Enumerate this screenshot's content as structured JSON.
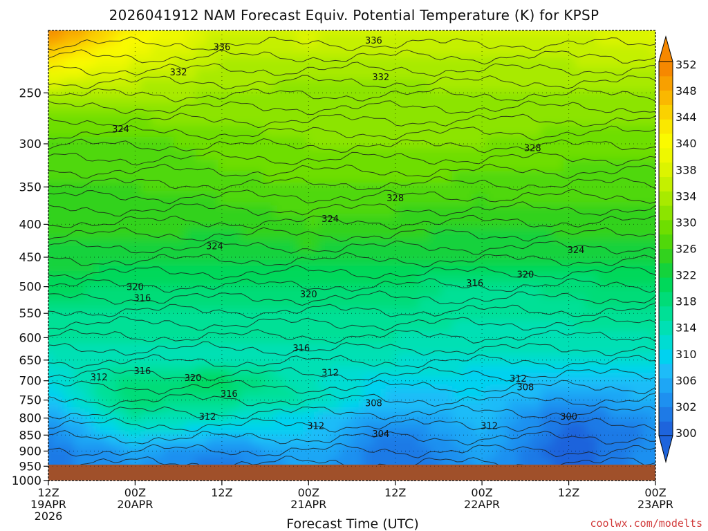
{
  "chart_data": {
    "type": "heatmap",
    "title": "2026041912 NAM Forecast Equiv. Potential Temperature (K) for KPSP",
    "xlabel": "Forecast Time (UTC)",
    "ylabel": "",
    "credit": "coolwx.com/modelts",
    "y_scale": "log",
    "ylim": [
      1000,
      200
    ],
    "yticks": [
      250,
      300,
      350,
      400,
      450,
      500,
      550,
      600,
      650,
      700,
      750,
      800,
      850,
      900,
      950,
      1000
    ],
    "surface_pressure": 945,
    "x_hours": [
      0,
      12,
      24,
      36,
      48,
      60,
      72,
      84
    ],
    "xlim": [
      0,
      84
    ],
    "x_ticks": [
      {
        "hour": 0,
        "lines": [
          "12Z",
          "19APR",
          "2026"
        ]
      },
      {
        "hour": 12,
        "lines": [
          "00Z",
          "20APR"
        ]
      },
      {
        "hour": 24,
        "lines": [
          "12Z"
        ]
      },
      {
        "hour": 36,
        "lines": [
          "00Z",
          "21APR"
        ]
      },
      {
        "hour": 48,
        "lines": [
          "12Z"
        ]
      },
      {
        "hour": 60,
        "lines": [
          "00Z",
          "22APR"
        ]
      },
      {
        "hour": 72,
        "lines": [
          "12Z"
        ]
      },
      {
        "hour": 84,
        "lines": [
          "00Z",
          "23APR"
        ]
      }
    ],
    "colorbar": {
      "levels": [
        300,
        302,
        304,
        306,
        308,
        310,
        312,
        314,
        316,
        318,
        320,
        322,
        324,
        326,
        328,
        330,
        332,
        334,
        336,
        338,
        340,
        342,
        344,
        346,
        348,
        350,
        352
      ],
      "labels": [
        300,
        302,
        306,
        310,
        314,
        318,
        322,
        326,
        330,
        334,
        338,
        340,
        344,
        348,
        352
      ],
      "colors": [
        "#1e64dc",
        "#1e7ae6",
        "#1e90f0",
        "#1ea6f5",
        "#1ebcf8",
        "#00d2f0",
        "#00dcd2",
        "#00e0b4",
        "#00e096",
        "#00dc78",
        "#00d85a",
        "#14d23c",
        "#32d21e",
        "#50d80a",
        "#6ede00",
        "#8ce400",
        "#a8ea00",
        "#c4f000",
        "#dcf400",
        "#eef800",
        "#fafa00",
        "#fae800",
        "#fad200",
        "#fab800",
        "#f8a000",
        "#f68800"
      ]
    },
    "series": [
      {
        "pressure": 200,
        "values": [
          352,
          342,
          336,
          337,
          336,
          336,
          336,
          338
        ]
      },
      {
        "pressure": 250,
        "values": [
          334,
          333,
          332,
          331,
          331,
          332,
          332,
          332
        ]
      },
      {
        "pressure": 300,
        "values": [
          326,
          327,
          329,
          330,
          330,
          330,
          329,
          329
        ]
      },
      {
        "pressure": 350,
        "values": [
          326,
          326,
          327,
          328,
          328,
          327,
          327,
          327
        ]
      },
      {
        "pressure": 400,
        "values": [
          325,
          325,
          324,
          326,
          325,
          324,
          325,
          325
        ]
      },
      {
        "pressure": 450,
        "values": [
          323,
          323,
          323,
          323,
          323,
          322,
          322,
          323
        ]
      },
      {
        "pressure": 500,
        "values": [
          321,
          320,
          320,
          320,
          320,
          317,
          319,
          320
        ]
      },
      {
        "pressure": 550,
        "values": [
          318,
          317,
          318,
          318,
          318,
          316,
          317,
          318
        ]
      },
      {
        "pressure": 600,
        "values": [
          316,
          316,
          316,
          316,
          316,
          315,
          315,
          316
        ]
      },
      {
        "pressure": 650,
        "values": [
          314,
          315,
          315,
          315,
          314,
          313,
          313,
          314
        ]
      },
      {
        "pressure": 700,
        "values": [
          312,
          319,
          321,
          314,
          311,
          311,
          309,
          310
        ]
      },
      {
        "pressure": 750,
        "values": [
          310,
          320,
          318,
          316,
          309,
          310,
          306,
          308
        ]
      },
      {
        "pressure": 800,
        "values": [
          306,
          316,
          314,
          310,
          306,
          309,
          302,
          306
        ]
      },
      {
        "pressure": 850,
        "values": [
          304,
          312,
          309,
          310,
          303,
          308,
          301,
          304
        ]
      },
      {
        "pressure": 900,
        "values": [
          303,
          307,
          304,
          308,
          302,
          307,
          300,
          306
        ]
      },
      {
        "pressure": 945,
        "values": [
          303,
          306,
          303,
          307,
          302,
          306,
          301,
          305
        ]
      }
    ],
    "contour_labels": [
      {
        "text": "336",
        "hour": 24,
        "pressure": 212
      },
      {
        "text": "336",
        "hour": 45,
        "pressure": 207
      },
      {
        "text": "332",
        "hour": 18,
        "pressure": 232
      },
      {
        "text": "332",
        "hour": 46,
        "pressure": 236
      },
      {
        "text": "324",
        "hour": 10,
        "pressure": 284
      },
      {
        "text": "328",
        "hour": 67,
        "pressure": 304
      },
      {
        "text": "328",
        "hour": 48,
        "pressure": 364
      },
      {
        "text": "324",
        "hour": 39,
        "pressure": 392
      },
      {
        "text": "324",
        "hour": 23,
        "pressure": 432
      },
      {
        "text": "324",
        "hour": 73,
        "pressure": 438
      },
      {
        "text": "320",
        "hour": 12,
        "pressure": 500
      },
      {
        "text": "316",
        "hour": 13,
        "pressure": 520
      },
      {
        "text": "320",
        "hour": 36,
        "pressure": 513
      },
      {
        "text": "320",
        "hour": 66,
        "pressure": 478
      },
      {
        "text": "316",
        "hour": 59,
        "pressure": 493
      },
      {
        "text": "316",
        "hour": 35,
        "pressure": 622
      },
      {
        "text": "312",
        "hour": 7,
        "pressure": 690
      },
      {
        "text": "316",
        "hour": 13,
        "pressure": 675
      },
      {
        "text": "320",
        "hour": 20,
        "pressure": 692
      },
      {
        "text": "312",
        "hour": 39,
        "pressure": 679
      },
      {
        "text": "316",
        "hour": 25,
        "pressure": 732
      },
      {
        "text": "312",
        "hour": 65,
        "pressure": 694
      },
      {
        "text": "308",
        "hour": 66,
        "pressure": 715
      },
      {
        "text": "308",
        "hour": 45,
        "pressure": 757
      },
      {
        "text": "312",
        "hour": 22,
        "pressure": 795
      },
      {
        "text": "300",
        "hour": 72,
        "pressure": 795
      },
      {
        "text": "312",
        "hour": 37,
        "pressure": 822
      },
      {
        "text": "312",
        "hour": 61,
        "pressure": 822
      },
      {
        "text": "304",
        "hour": 46,
        "pressure": 845
      }
    ]
  }
}
